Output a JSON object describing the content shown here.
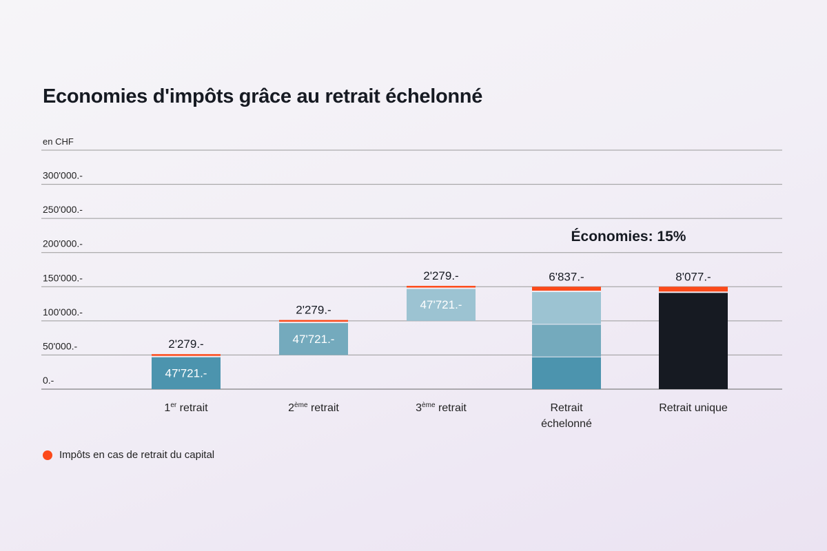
{
  "chart_data": {
    "type": "bar",
    "title": "Economies d'impôts grâce au retrait échelonné",
    "ylabel": "en CHF",
    "ylim": [
      0,
      350000
    ],
    "yticks": [
      {
        "value": 0,
        "label": "0.-"
      },
      {
        "value": 50000,
        "label": "50'000.-"
      },
      {
        "value": 100000,
        "label": "100'000.-"
      },
      {
        "value": 150000,
        "label": "150'000.-"
      },
      {
        "value": 200000,
        "label": "200'000.-"
      },
      {
        "value": 250000,
        "label": "250'000.-"
      },
      {
        "value": 300000,
        "label": "300'000.-"
      }
    ],
    "grid": true,
    "categories": [
      {
        "label": "1",
        "sup": "er",
        "rest": " retrait"
      },
      {
        "label": "2",
        "sup": "ème",
        "rest": " retrait"
      },
      {
        "label": "3",
        "sup": "ème",
        "rest": " retrait"
      },
      {
        "label": "Retrait",
        "sup": "",
        "rest": "échelonné"
      },
      {
        "label": "Retrait unique",
        "sup": "",
        "rest": ""
      }
    ],
    "bars": [
      {
        "segments": [
          {
            "base": 0,
            "value": 47721,
            "color": "#4c94ae",
            "label": "47'721.-"
          }
        ],
        "tax": 2279,
        "tax_label": "2'279.-"
      },
      {
        "segments": [
          {
            "base": 50000,
            "value": 47721,
            "color": "#74aabd",
            "label": "47'721.-"
          }
        ],
        "tax": 2279,
        "tax_label": "2'279.-"
      },
      {
        "segments": [
          {
            "base": 100000,
            "value": 47721,
            "color": "#9cc3d2",
            "label": "47'721.-"
          }
        ],
        "tax": 2279,
        "tax_label": "2'279.-"
      },
      {
        "segments": [
          {
            "base": 0,
            "value": 47721,
            "color": "#4c94ae",
            "label": ""
          },
          {
            "base": 47721,
            "value": 47721,
            "color": "#74aabd",
            "label": ""
          },
          {
            "base": 95442,
            "value": 47721,
            "color": "#9cc3d2",
            "label": ""
          }
        ],
        "tax": 6837,
        "tax_label": "6'837.-"
      },
      {
        "segments": [
          {
            "base": 0,
            "value": 141923,
            "color": "#161a22",
            "label": ""
          }
        ],
        "tax": 8077,
        "tax_label": "8'077.-"
      }
    ],
    "tax_color": "#fc4a1a",
    "annotation": "Économies: 15%",
    "legend": [
      {
        "name": "Impôts en cas de retrait du capital",
        "color": "#fc4a1a"
      }
    ],
    "legend_placement": "bottom-left"
  }
}
